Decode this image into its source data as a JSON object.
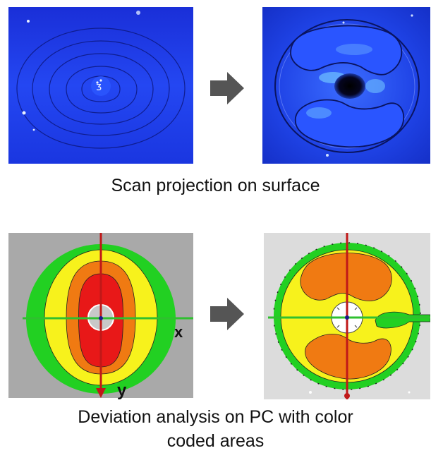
{
  "captions": {
    "scan": "Scan projection on surface",
    "deviation_line1": "Deviation analysis on PC with color",
    "deviation_line2": "coded areas"
  },
  "axis_labels": {
    "x": "x",
    "y": "y"
  },
  "colors": {
    "projection_blue": "#1f3ff0",
    "green": "#22d022",
    "yellow": "#f7f21c",
    "orange": "#f07a12",
    "red": "#e81818",
    "axis_red": "#c01818",
    "axis_green": "#2fc02f",
    "arrow_gray": "#555555"
  },
  "icons": [
    "right-arrow-icon",
    "right-arrow-icon"
  ]
}
